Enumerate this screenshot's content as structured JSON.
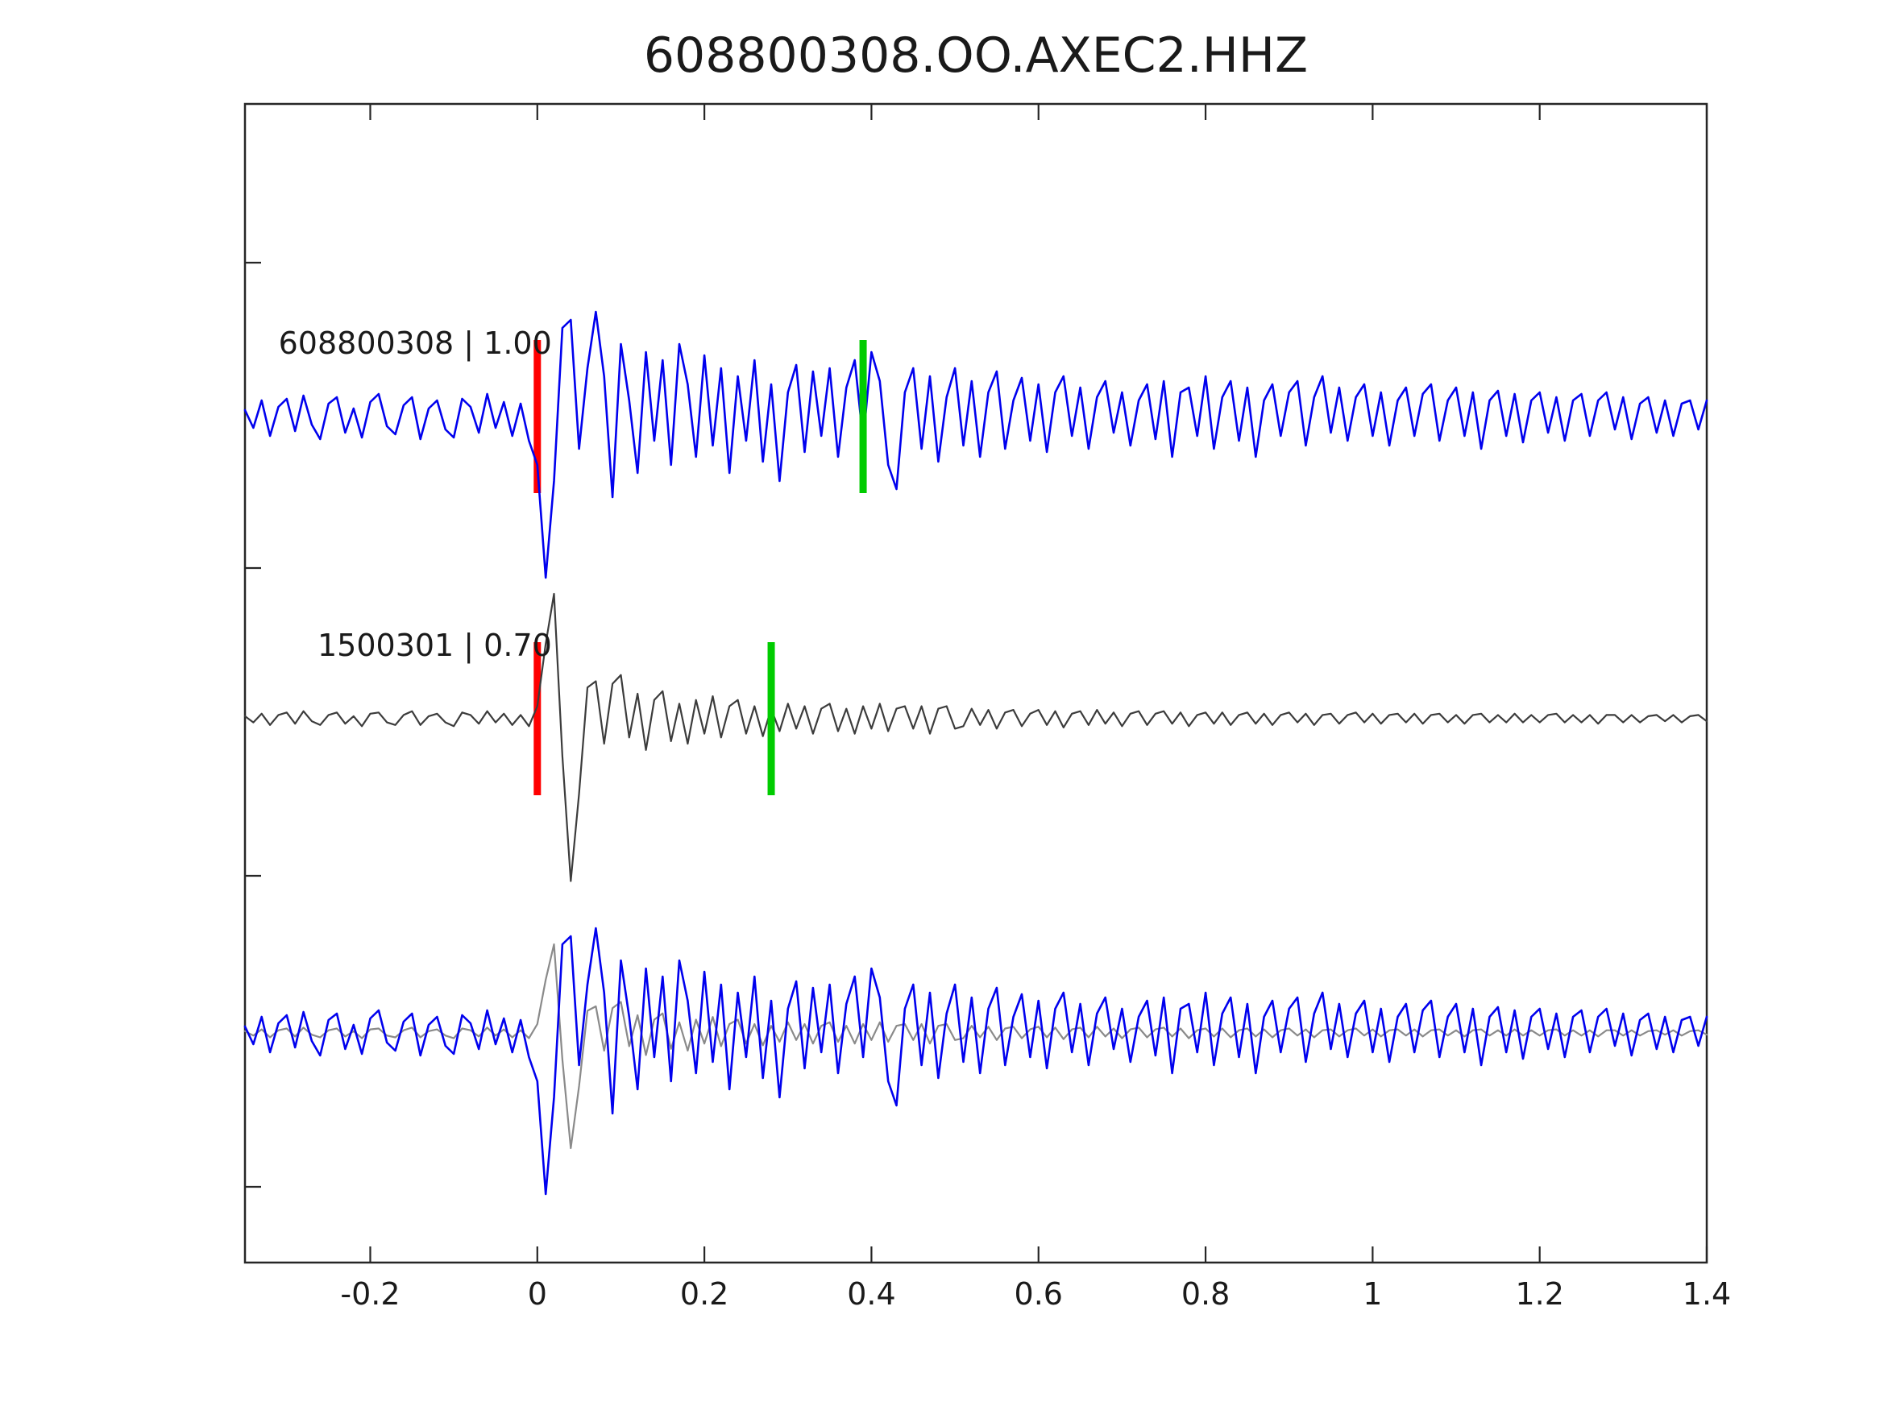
{
  "figure": {
    "background": "#ffffff"
  },
  "chart_data": {
    "type": "line",
    "title": "608800308.OO.AXEC2.HHZ",
    "xlabel": "",
    "ylabel": "",
    "xlim": [
      -0.35,
      1.4
    ],
    "xticks": [
      -0.2,
      0,
      0.2,
      0.4,
      0.6,
      0.8,
      1,
      1.2,
      1.4
    ],
    "xtick_labels": [
      "-0.2",
      "0",
      "0.2",
      "0.4",
      "0.6",
      "0.8",
      "1",
      "1.2",
      "1.4"
    ],
    "yticks_labeled": false,
    "grid": false,
    "legend": "none",
    "sampling": {
      "t_start": -0.35,
      "dt": 0.01,
      "n": 176
    },
    "colors": {
      "target_trace": "#0000ee",
      "template_trace": "#3c3c3c",
      "overlay_template": "#8a8a8a",
      "pick_marker": "#ff0000",
      "window_marker": "#00cc00",
      "axis": "#262626",
      "text": "#1a1a1a"
    },
    "traces": [
      {
        "name": "608800308",
        "label": "608800308 | 1.00",
        "correlation": 1.0,
        "color": "#0000ee",
        "row": 0,
        "pick_marker_t": 0.0,
        "pick_marker_color": "#ff0000",
        "window_marker_t": 0.39,
        "window_marker_color": "#00cc00",
        "values": [
          0.04,
          -0.07,
          0.1,
          -0.12,
          0.06,
          0.11,
          -0.09,
          0.13,
          -0.05,
          -0.14,
          0.08,
          0.12,
          -0.1,
          0.05,
          -0.13,
          0.09,
          0.14,
          -0.06,
          -0.11,
          0.07,
          0.12,
          -0.14,
          0.05,
          0.1,
          -0.08,
          -0.13,
          0.11,
          0.06,
          -0.1,
          0.14,
          -0.07,
          0.09,
          -0.12,
          0.08,
          -0.15,
          -0.3,
          -1.0,
          -0.4,
          0.55,
          0.6,
          -0.2,
          0.3,
          0.65,
          0.25,
          -0.5,
          0.45,
          0.1,
          -0.35,
          0.4,
          -0.15,
          0.35,
          -0.3,
          0.45,
          0.2,
          -0.25,
          0.38,
          -0.18,
          0.3,
          -0.35,
          0.25,
          -0.15,
          0.35,
          -0.28,
          0.2,
          -0.4,
          0.15,
          0.32,
          -0.22,
          0.28,
          -0.12,
          0.3,
          -0.25,
          0.18,
          0.35,
          -0.15,
          0.4,
          0.22,
          -0.3,
          -0.45,
          0.15,
          0.3,
          -0.2,
          0.25,
          -0.28,
          0.12,
          0.3,
          -0.18,
          0.22,
          -0.25,
          0.15,
          0.28,
          -0.2,
          0.1,
          0.24,
          -0.15,
          0.2,
          -0.22,
          0.15,
          0.25,
          -0.12,
          0.18,
          -0.2,
          0.12,
          0.22,
          -0.1,
          0.15,
          -0.18,
          0.1,
          0.2,
          -0.14,
          0.22,
          -0.25,
          0.15,
          0.18,
          -0.12,
          0.25,
          -0.2,
          0.12,
          0.22,
          -0.15,
          0.18,
          -0.25,
          0.1,
          0.2,
          -0.12,
          0.15,
          0.22,
          -0.18,
          0.12,
          0.25,
          -0.1,
          0.18,
          -0.15,
          0.12,
          0.2,
          -0.12,
          0.15,
          -0.18,
          0.1,
          0.18,
          -0.12,
          0.14,
          0.2,
          -0.15,
          0.1,
          0.18,
          -0.12,
          0.15,
          -0.2,
          0.1,
          0.16,
          -0.12,
          0.14,
          -0.16,
          0.1,
          0.15,
          -0.1,
          0.12,
          -0.15,
          0.1,
          0.14,
          -0.12,
          0.1,
          0.15,
          -0.08,
          0.12,
          -0.14,
          0.08,
          0.12,
          -0.1,
          0.1,
          -0.12,
          0.08,
          0.1,
          -0.08,
          0.1
        ]
      },
      {
        "name": "1500301",
        "label": "1500301 | 0.70",
        "correlation": 0.7,
        "color": "#3c3c3c",
        "row": 1,
        "pick_marker_t": 0.0,
        "pick_marker_color": "#ff0000",
        "window_marker_t": 0.28,
        "window_marker_color": "#00cc00",
        "values": [
          0.02,
          -0.03,
          0.04,
          -0.05,
          0.03,
          0.05,
          -0.04,
          0.06,
          -0.02,
          -0.05,
          0.03,
          0.05,
          -0.04,
          0.02,
          -0.06,
          0.04,
          0.05,
          -0.03,
          -0.05,
          0.03,
          0.06,
          -0.05,
          0.02,
          0.04,
          -0.03,
          -0.06,
          0.05,
          0.03,
          -0.04,
          0.06,
          -0.03,
          0.04,
          -0.05,
          0.03,
          -0.06,
          0.1,
          0.6,
          1.0,
          -0.3,
          -1.3,
          -0.6,
          0.25,
          0.3,
          -0.2,
          0.28,
          0.35,
          -0.15,
          0.2,
          -0.25,
          0.15,
          0.22,
          -0.18,
          0.12,
          -0.2,
          0.15,
          -0.12,
          0.18,
          -0.15,
          0.1,
          0.15,
          -0.12,
          0.1,
          -0.14,
          0.08,
          -0.1,
          0.12,
          -0.08,
          0.1,
          -0.12,
          0.08,
          0.12,
          -0.1,
          0.08,
          -0.12,
          0.1,
          -0.08,
          0.12,
          -0.1,
          0.08,
          0.1,
          -0.08,
          0.1,
          -0.12,
          0.08,
          0.1,
          -0.08,
          -0.06,
          0.08,
          -0.05,
          0.07,
          -0.08,
          0.05,
          0.07,
          -0.06,
          0.04,
          0.07,
          -0.05,
          0.06,
          -0.07,
          0.04,
          0.06,
          -0.05,
          0.07,
          -0.04,
          0.05,
          -0.06,
          0.04,
          0.06,
          -0.05,
          0.04,
          0.06,
          -0.04,
          0.05,
          -0.06,
          0.03,
          0.05,
          -0.04,
          0.05,
          -0.05,
          0.03,
          0.05,
          -0.04,
          0.04,
          -0.05,
          0.03,
          0.05,
          -0.03,
          0.04,
          -0.05,
          0.03,
          0.04,
          -0.04,
          0.03,
          0.05,
          -0.03,
          0.04,
          -0.04,
          0.03,
          0.04,
          -0.03,
          0.04,
          -0.04,
          0.03,
          0.04,
          -0.03,
          0.03,
          -0.04,
          0.03,
          0.04,
          -0.03,
          0.03,
          -0.03,
          0.04,
          -0.03,
          0.03,
          -0.03,
          0.03,
          0.04,
          -0.03,
          0.03,
          -0.03,
          0.03,
          -0.04,
          0.03,
          0.03,
          -0.03,
          0.03,
          -0.03,
          0.02,
          0.03,
          -0.02,
          0.03,
          -0.03,
          0.02,
          0.03,
          -0.02
        ]
      },
      {
        "name": "overlay",
        "label": "",
        "row": 2,
        "description": "target and scaled template traces overlaid",
        "components": [
          {
            "source": 1,
            "color": "#8a8a8a",
            "gain": 0.55
          },
          {
            "source": 0,
            "color": "#0000ee",
            "gain": 1.0
          }
        ]
      }
    ]
  }
}
